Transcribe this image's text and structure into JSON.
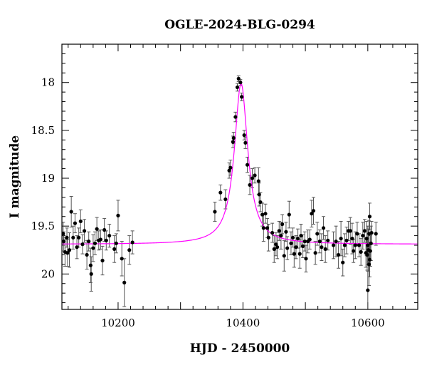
{
  "chart_data": {
    "type": "scatter",
    "title": "OGLE-2024-BLG-0294",
    "xlabel": "HJD - 2450000",
    "ylabel": "I magnitude",
    "xlim": [
      10110,
      10680
    ],
    "ylim": [
      20.37,
      17.6
    ],
    "y_inverted": true,
    "grid": false,
    "xticks": [
      10200,
      10400,
      10600
    ],
    "xtick_labels": [
      "10200",
      "10400",
      "10600"
    ],
    "yticks": [
      18,
      18.5,
      19,
      19.5,
      20
    ],
    "ytick_labels": [
      "18",
      "18.5",
      "19",
      "19.5",
      "20"
    ],
    "colors": {
      "data": "#000000",
      "model": "#ff00ff",
      "errorbar": "#555555"
    },
    "model": {
      "t0": 10397,
      "base_mag": 19.69,
      "amplitude_mag": 1.68,
      "width": 13
    },
    "series": [
      {
        "points": [
          [
            10112,
            19.58,
            0.12
          ],
          [
            10113,
            19.66,
            0.1
          ],
          [
            10115,
            19.77,
            0.15
          ],
          [
            10118,
            19.62,
            0.1
          ],
          [
            10119,
            19.78,
            0.14
          ],
          [
            10122,
            19.75,
            0.18
          ],
          [
            10125,
            19.35,
            0.16
          ],
          [
            10128,
            19.62,
            0.12
          ],
          [
            10131,
            19.47,
            0.1
          ],
          [
            10134,
            19.72,
            0.12
          ],
          [
            10137,
            19.62,
            0.1
          ],
          [
            10140,
            19.45,
            0.12
          ],
          [
            10143,
            19.69,
            0.1
          ],
          [
            10146,
            19.55,
            0.12
          ],
          [
            10150,
            19.8,
            0.15
          ],
          [
            10153,
            19.66,
            0.1
          ],
          [
            10156,
            19.91,
            0.18
          ],
          [
            10157,
            20.0,
            0.18
          ],
          [
            10160,
            19.73,
            0.14
          ],
          [
            10163,
            19.68,
            0.12
          ],
          [
            10166,
            19.53,
            0.12
          ],
          [
            10169,
            19.65,
            0.1
          ],
          [
            10172,
            19.64,
            0.1
          ],
          [
            10175,
            19.86,
            0.15
          ],
          [
            10178,
            19.54,
            0.12
          ],
          [
            10181,
            19.65,
            0.1
          ],
          [
            10186,
            19.6,
            0.12
          ],
          [
            10194,
            19.74,
            0.14
          ],
          [
            10197,
            19.68,
            0.1
          ],
          [
            10200,
            19.39,
            0.16
          ],
          [
            10206,
            19.84,
            0.18
          ],
          [
            10210,
            20.09,
            0.25
          ],
          [
            10218,
            19.75,
            0.15
          ],
          [
            10223,
            19.67,
            0.12
          ],
          [
            10355,
            19.35,
            0.1
          ],
          [
            10364,
            19.15,
            0.08
          ],
          [
            10372,
            19.22,
            0.1
          ],
          [
            10378,
            18.92,
            0.08
          ],
          [
            10380,
            18.89,
            0.08
          ],
          [
            10384,
            18.62,
            0.06
          ],
          [
            10385,
            18.58,
            0.06
          ],
          [
            10388,
            18.36,
            0.05
          ],
          [
            10391,
            18.05,
            0.04
          ],
          [
            10393,
            17.96,
            0.03
          ],
          [
            10396,
            18.0,
            0.03
          ],
          [
            10398,
            18.15,
            0.04
          ],
          [
            10402,
            18.55,
            0.05
          ],
          [
            10404,
            18.63,
            0.06
          ],
          [
            10407,
            18.86,
            0.08
          ],
          [
            10411,
            19.07,
            0.1
          ],
          [
            10415,
            19.0,
            0.1
          ],
          [
            10419,
            18.97,
            0.08
          ],
          [
            10425,
            19.03,
            0.14
          ],
          [
            10426,
            19.17,
            0.12
          ],
          [
            10428,
            19.25,
            0.1
          ],
          [
            10431,
            19.38,
            0.12
          ],
          [
            10433,
            19.52,
            0.14
          ],
          [
            10436,
            19.37,
            0.1
          ],
          [
            10439,
            19.52,
            0.1
          ],
          [
            10441,
            19.62,
            0.14
          ],
          [
            10447,
            19.57,
            0.1
          ],
          [
            10450,
            19.74,
            0.14
          ],
          [
            10453,
            19.69,
            0.12
          ],
          [
            10455,
            19.72,
            0.12
          ],
          [
            10458,
            19.55,
            0.1
          ],
          [
            10461,
            19.6,
            0.14
          ],
          [
            10463,
            19.48,
            0.1
          ],
          [
            10466,
            19.81,
            0.16
          ],
          [
            10469,
            19.56,
            0.1
          ],
          [
            10471,
            19.73,
            0.12
          ],
          [
            10474,
            19.38,
            0.14
          ],
          [
            10477,
            19.68,
            0.12
          ],
          [
            10480,
            19.62,
            0.1
          ],
          [
            10482,
            19.79,
            0.14
          ],
          [
            10485,
            19.72,
            0.12
          ],
          [
            10488,
            19.63,
            0.1
          ],
          [
            10491,
            19.79,
            0.15
          ],
          [
            10493,
            19.6,
            0.12
          ],
          [
            10496,
            19.71,
            0.12
          ],
          [
            10499,
            19.66,
            0.1
          ],
          [
            10501,
            19.84,
            0.14
          ],
          [
            10504,
            19.66,
            0.12
          ],
          [
            10507,
            19.64,
            0.1
          ],
          [
            10510,
            19.37,
            0.14
          ],
          [
            10513,
            19.34,
            0.14
          ],
          [
            10516,
            19.78,
            0.12
          ],
          [
            10519,
            19.58,
            0.12
          ],
          [
            10523,
            19.66,
            0.12
          ],
          [
            10526,
            19.72,
            0.14
          ],
          [
            10529,
            19.52,
            0.12
          ],
          [
            10532,
            19.74,
            0.14
          ],
          [
            10536,
            19.65,
            0.1
          ],
          [
            10545,
            19.7,
            0.14
          ],
          [
            10549,
            19.66,
            0.16
          ],
          [
            10553,
            19.8,
            0.14
          ],
          [
            10557,
            19.63,
            0.18
          ],
          [
            10560,
            19.88,
            0.14
          ],
          [
            10563,
            19.7,
            0.12
          ],
          [
            10566,
            19.65,
            0.14
          ],
          [
            10569,
            19.55,
            0.1
          ],
          [
            10572,
            19.55,
            0.14
          ],
          [
            10575,
            19.63,
            0.16
          ],
          [
            10577,
            19.76,
            0.12
          ],
          [
            10580,
            19.7,
            0.14
          ],
          [
            10583,
            19.58,
            0.12
          ],
          [
            10586,
            19.7,
            0.12
          ],
          [
            10589,
            19.77,
            0.14
          ],
          [
            10592,
            19.6,
            0.14
          ],
          [
            10595,
            19.55,
            0.12
          ],
          [
            10597,
            19.78,
            0.15
          ],
          [
            10598,
            19.63,
            0.18
          ],
          [
            10599,
            19.8,
            0.16
          ],
          [
            10600,
            19.7,
            0.2
          ],
          [
            10601,
            19.75,
            0.22
          ],
          [
            10602,
            19.58,
            0.14
          ],
          [
            10603,
            19.85,
            0.18
          ],
          [
            10604,
            19.76,
            0.16
          ],
          [
            10605,
            19.68,
            0.18
          ],
          [
            10606,
            19.57,
            0.12
          ],
          [
            10600,
            20.17,
            0.2
          ],
          [
            10602,
            19.9,
            0.22
          ],
          [
            10603,
            19.4,
            0.14
          ],
          [
            10613,
            19.58,
            0.12
          ]
        ]
      }
    ]
  }
}
